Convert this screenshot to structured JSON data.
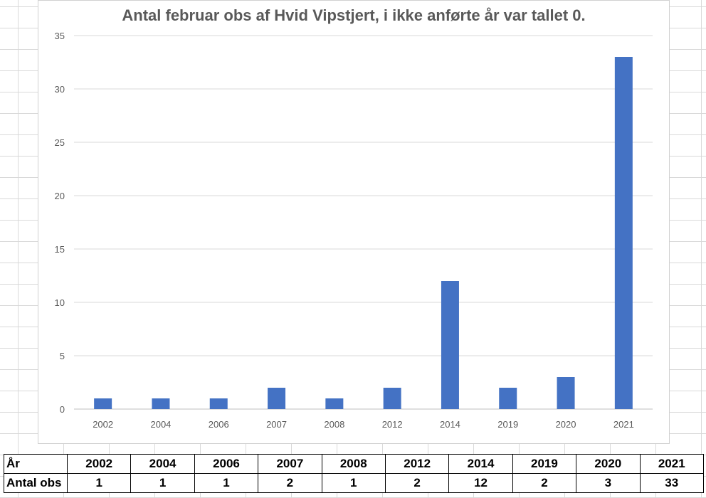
{
  "chart_data": {
    "type": "bar",
    "title": "Antal februar obs af Hvid Vipstjert, i ikke anførte år var tallet 0.",
    "categories": [
      "2002",
      "2004",
      "2006",
      "2007",
      "2008",
      "2012",
      "2014",
      "2019",
      "2020",
      "2021"
    ],
    "values": [
      1,
      1,
      1,
      2,
      1,
      2,
      12,
      2,
      3,
      33
    ],
    "xlabel": "",
    "ylabel": "",
    "ylim": [
      0,
      35
    ],
    "yticks": [
      "0",
      "5",
      "10",
      "15",
      "20",
      "25",
      "30",
      "35"
    ],
    "grid": true,
    "legend": "none",
    "bar_color": "#4472c4"
  },
  "table": {
    "row1_label": "År",
    "row2_label": "Antal obs",
    "years": [
      "2002",
      "2004",
      "2006",
      "2007",
      "2008",
      "2012",
      "2014",
      "2019",
      "2020",
      "2021"
    ],
    "counts": [
      "1",
      "1",
      "1",
      "2",
      "1",
      "2",
      "12",
      "2",
      "3",
      "33"
    ]
  }
}
